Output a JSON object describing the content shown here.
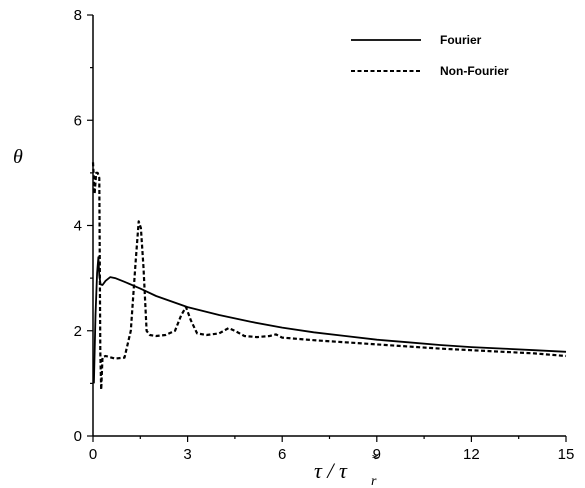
{
  "chart_data": {
    "type": "line",
    "xlabel": {
      "main": "τ / τ",
      "sub": "r",
      "sup": "*"
    },
    "ylabel": "θ",
    "xlim": [
      0,
      15
    ],
    "ylim": [
      0,
      8
    ],
    "xticks": [
      0,
      3,
      6,
      9,
      12,
      15
    ],
    "yticks": [
      0,
      2,
      4,
      6,
      8
    ],
    "grid": false,
    "legend_position": "top-right",
    "series": [
      {
        "name": "Fourier",
        "style": "solid",
        "color": "#000000",
        "x": [
          0.03,
          0.08,
          0.13,
          0.17,
          0.2,
          0.24,
          0.3,
          0.4,
          0.55,
          0.7,
          1.0,
          1.5,
          2.0,
          3.0,
          4.0,
          5.0,
          6.0,
          7.0,
          8.0,
          9.0,
          10.0,
          11.0,
          12.0,
          13.0,
          14.0,
          15.0
        ],
        "y": [
          1.0,
          2.3,
          3.1,
          3.4,
          3.05,
          2.88,
          2.87,
          2.95,
          3.02,
          3.0,
          2.93,
          2.8,
          2.66,
          2.45,
          2.3,
          2.17,
          2.06,
          1.97,
          1.9,
          1.83,
          1.78,
          1.73,
          1.69,
          1.66,
          1.63,
          1.6
        ]
      },
      {
        "name": "Non-Fourier",
        "style": "dashed",
        "color": "#000000",
        "x": [
          0.0,
          0.05,
          0.1,
          0.15,
          0.2,
          0.23,
          0.26,
          0.3,
          0.4,
          0.7,
          1.0,
          1.2,
          1.35,
          1.45,
          1.52,
          1.6,
          1.7,
          1.8,
          2.0,
          2.3,
          2.6,
          2.8,
          2.95,
          3.1,
          3.3,
          3.6,
          4.0,
          4.3,
          4.5,
          4.8,
          5.2,
          5.6,
          5.8,
          6.0,
          7.0,
          8.0,
          9.0,
          10.0,
          11.0,
          12.0,
          13.0,
          14.0,
          15.0
        ],
        "y": [
          5.2,
          4.6,
          5.0,
          5.0,
          4.9,
          1.6,
          0.88,
          1.5,
          1.52,
          1.47,
          1.49,
          2.0,
          3.3,
          4.08,
          3.95,
          3.2,
          2.0,
          1.92,
          1.9,
          1.92,
          2.0,
          2.3,
          2.45,
          2.2,
          1.95,
          1.92,
          1.95,
          2.05,
          2.0,
          1.9,
          1.88,
          1.9,
          1.93,
          1.87,
          1.82,
          1.78,
          1.74,
          1.7,
          1.66,
          1.63,
          1.6,
          1.57,
          1.52
        ]
      }
    ]
  }
}
